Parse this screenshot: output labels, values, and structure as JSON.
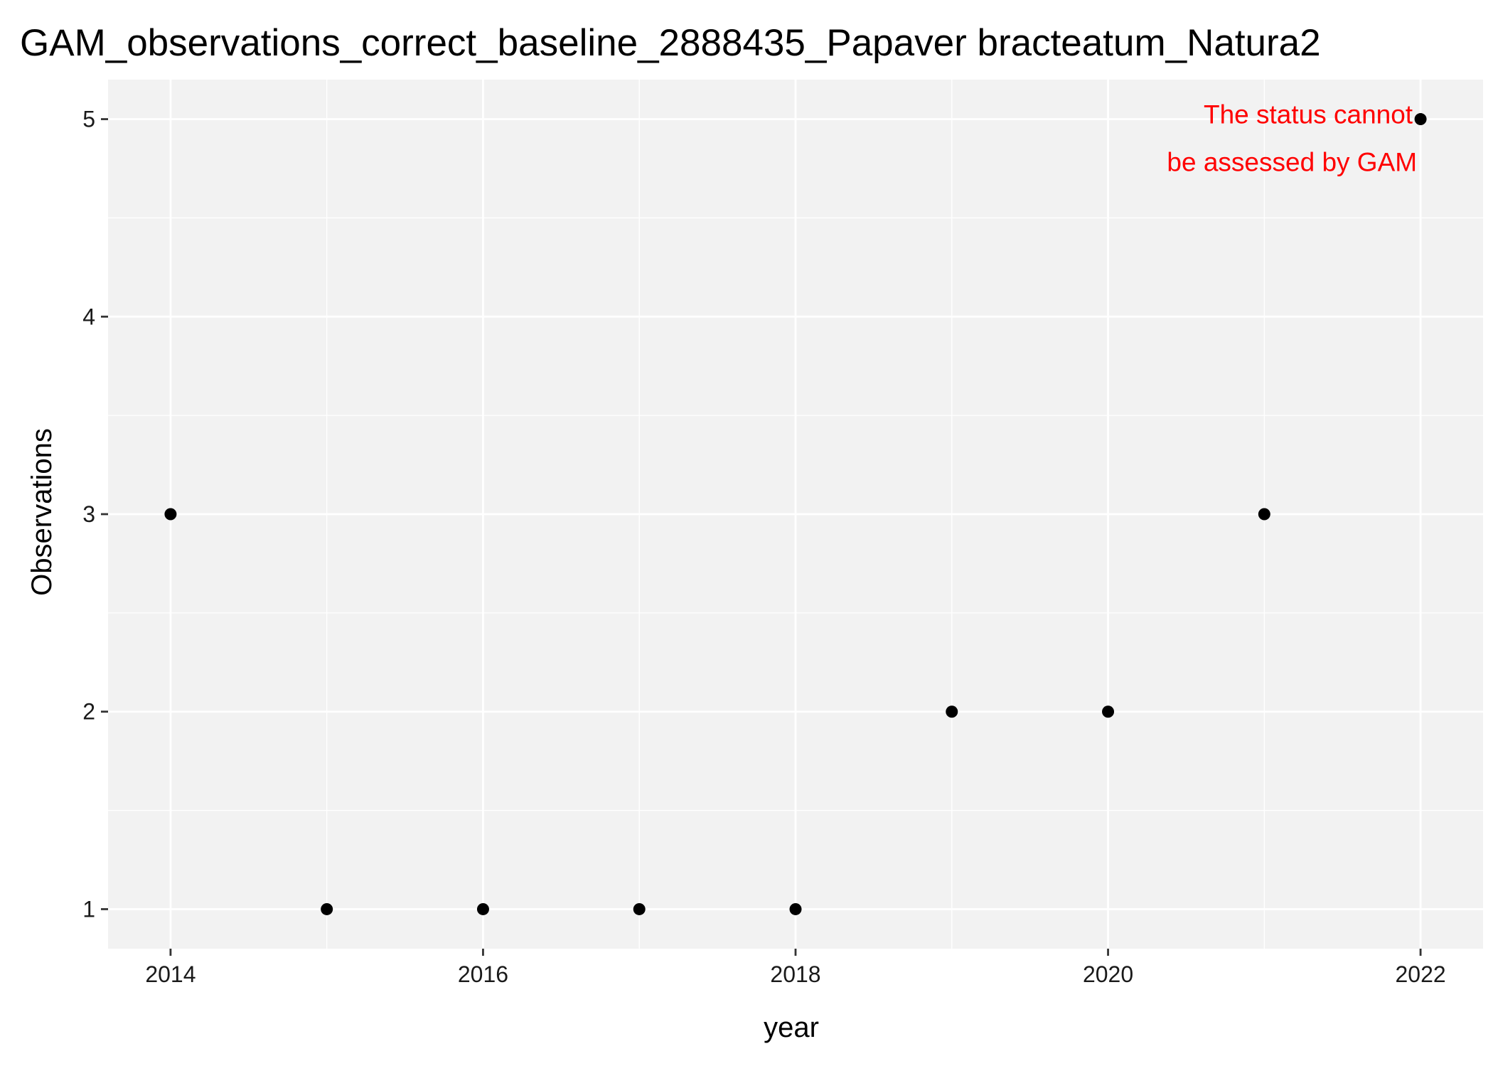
{
  "chart_data": {
    "type": "scatter",
    "title": "GAM_observations_correct_baseline_2888435_Papaver bracteatum_Natura2",
    "xlabel": "year",
    "ylabel": "Observations",
    "x": [
      2014,
      2015,
      2016,
      2017,
      2018,
      2019,
      2020,
      2021,
      2022
    ],
    "y": [
      3,
      1,
      1,
      1,
      1,
      2,
      2,
      3,
      5
    ],
    "xlim": [
      2013.6,
      2022.4
    ],
    "ylim": [
      0.8,
      5.2
    ],
    "x_ticks": [
      2014,
      2016,
      2018,
      2020,
      2022
    ],
    "x_tick_labels": [
      "2014",
      "2016",
      "2018",
      "2020",
      "2022"
    ],
    "y_ticks": [
      1,
      2,
      3,
      4,
      5
    ],
    "y_tick_labels": [
      "1",
      "2",
      "3",
      "4",
      "5"
    ],
    "x_minor_ticks": [
      2015,
      2017,
      2019,
      2021
    ],
    "y_minor_ticks": [
      1.5,
      2.5,
      3.5,
      4.5
    ],
    "grid": true,
    "annotation": {
      "lines": [
        "The status cannot",
        "be assessed by GAM"
      ],
      "color": "#ff0000",
      "x": 2021.95,
      "y": 4.935
    },
    "colors": {
      "panel_background": "#f2f2f2",
      "grid": "#ffffff",
      "points": "#000000"
    }
  }
}
